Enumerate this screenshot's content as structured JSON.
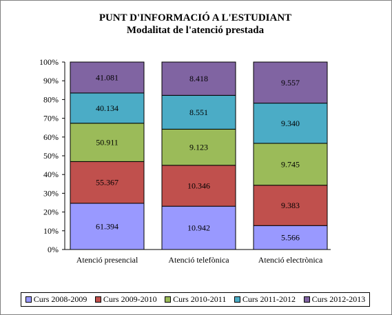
{
  "chart_data": {
    "type": "bar",
    "stacked": "percent",
    "title": "PUNT D'INFORMACIÓ A L'ESTUDIANT",
    "subtitle": "Modalitat de l'atenció prestada",
    "categories": [
      "Atenció presencial",
      "Atenció telefònica",
      "Atenció electrònica"
    ],
    "series": [
      {
        "name": "Curs 2008-2009",
        "color": "#9999ff",
        "values": [
          61394,
          10942,
          5566
        ],
        "labels": [
          "61.394",
          "10.942",
          "5.566"
        ]
      },
      {
        "name": "Curs 2009-2010",
        "color": "#c0504d",
        "values": [
          55367,
          10346,
          9383
        ],
        "labels": [
          "55.367",
          "10.346",
          "9.383"
        ]
      },
      {
        "name": "Curs 2010-2011",
        "color": "#9bbb59",
        "values": [
          50911,
          9123,
          9745
        ],
        "labels": [
          "50.911",
          "9.123",
          "9.745"
        ]
      },
      {
        "name": "Curs 2011-2012",
        "color": "#4bacc6",
        "values": [
          40134,
          8551,
          9340
        ],
        "labels": [
          "40.134",
          "8.551",
          "9.340"
        ]
      },
      {
        "name": "Curs 2012-2013",
        "color": "#8064a2",
        "values": [
          41081,
          8418,
          9557
        ],
        "labels": [
          "41.081",
          "8.418",
          "9.557"
        ]
      }
    ],
    "yticks": [
      "0%",
      "10%",
      "20%",
      "30%",
      "40%",
      "50%",
      "60%",
      "70%",
      "80%",
      "90%",
      "100%"
    ],
    "ylim": [
      0,
      100
    ],
    "grid": false,
    "legend": "bottom"
  }
}
